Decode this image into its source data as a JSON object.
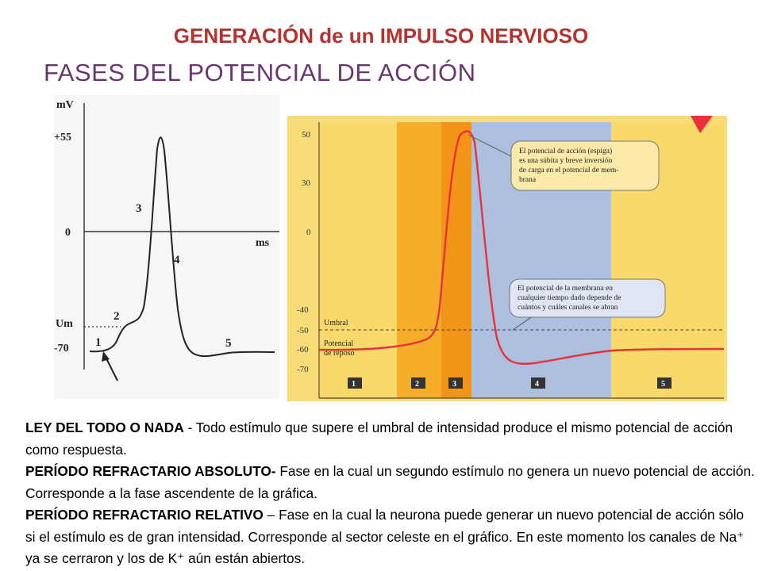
{
  "title": "GENERACIÓN de un IMPULSO NERVIOSO",
  "subtitle": "FASES DEL POTENCIAL DE ACCIÓN",
  "left_figure": {
    "y_unit": "mV",
    "x_unit": "ms",
    "ticks": [
      "+55",
      "0",
      "Um",
      "-70"
    ],
    "phase_labels": [
      "1",
      "2",
      "3",
      "4",
      "5"
    ]
  },
  "right_figure": {
    "y_ticks": [
      "50",
      "30",
      "0",
      "-40",
      "-50",
      "-60",
      "-70"
    ],
    "labels": {
      "umbral": "Umbral",
      "reposo_line1": "Potencial",
      "reposo_line2": "de reposo"
    },
    "callout_top": [
      "El potencial de acción (espiga)",
      "es una súbita y breve inversión",
      "de carga en el potencial de mem-",
      "brana"
    ],
    "callout_bottom": [
      "El potencial de la membrana en",
      "cualquier tiempo dado depende de",
      "cuántos y cuáles canales se abran"
    ],
    "phase_boxes": [
      "1",
      "2",
      "3",
      "4",
      "5"
    ],
    "colors": {
      "phase1": "#f9d86c",
      "phase2": "#f6ae2a",
      "phase3": "#f29418",
      "phase4": "#adbfde",
      "phase5": "#f9d86c",
      "curve": "#e8313a"
    }
  },
  "paragraphs": [
    {
      "term": "LEY DEL TODO O NADA",
      "sep": " - ",
      "text": " Todo estímulo que supere el umbral de intensidad produce el mismo potencial de acción como respuesta."
    },
    {
      "term": "PERÍODO REFRACTARIO ABSOLUTO-",
      "sep": " ",
      "text": " Fase en la cual un segundo estímulo no genera un nuevo potencial de acción. Corresponde a la fase ascendente de la gráfica."
    },
    {
      "term": "PERÍODO REFRACTARIO RELATIVO",
      "sep": " – ",
      "text": "Fase en la cual la neurona puede generar un nuevo potencial de acción sólo si el estímulo es de gran intensidad. Corresponde al sector celeste en el gráfico. En este momento los canales de Na⁺ ya se cerraron y los de K⁺ aún están abiertos."
    }
  ]
}
